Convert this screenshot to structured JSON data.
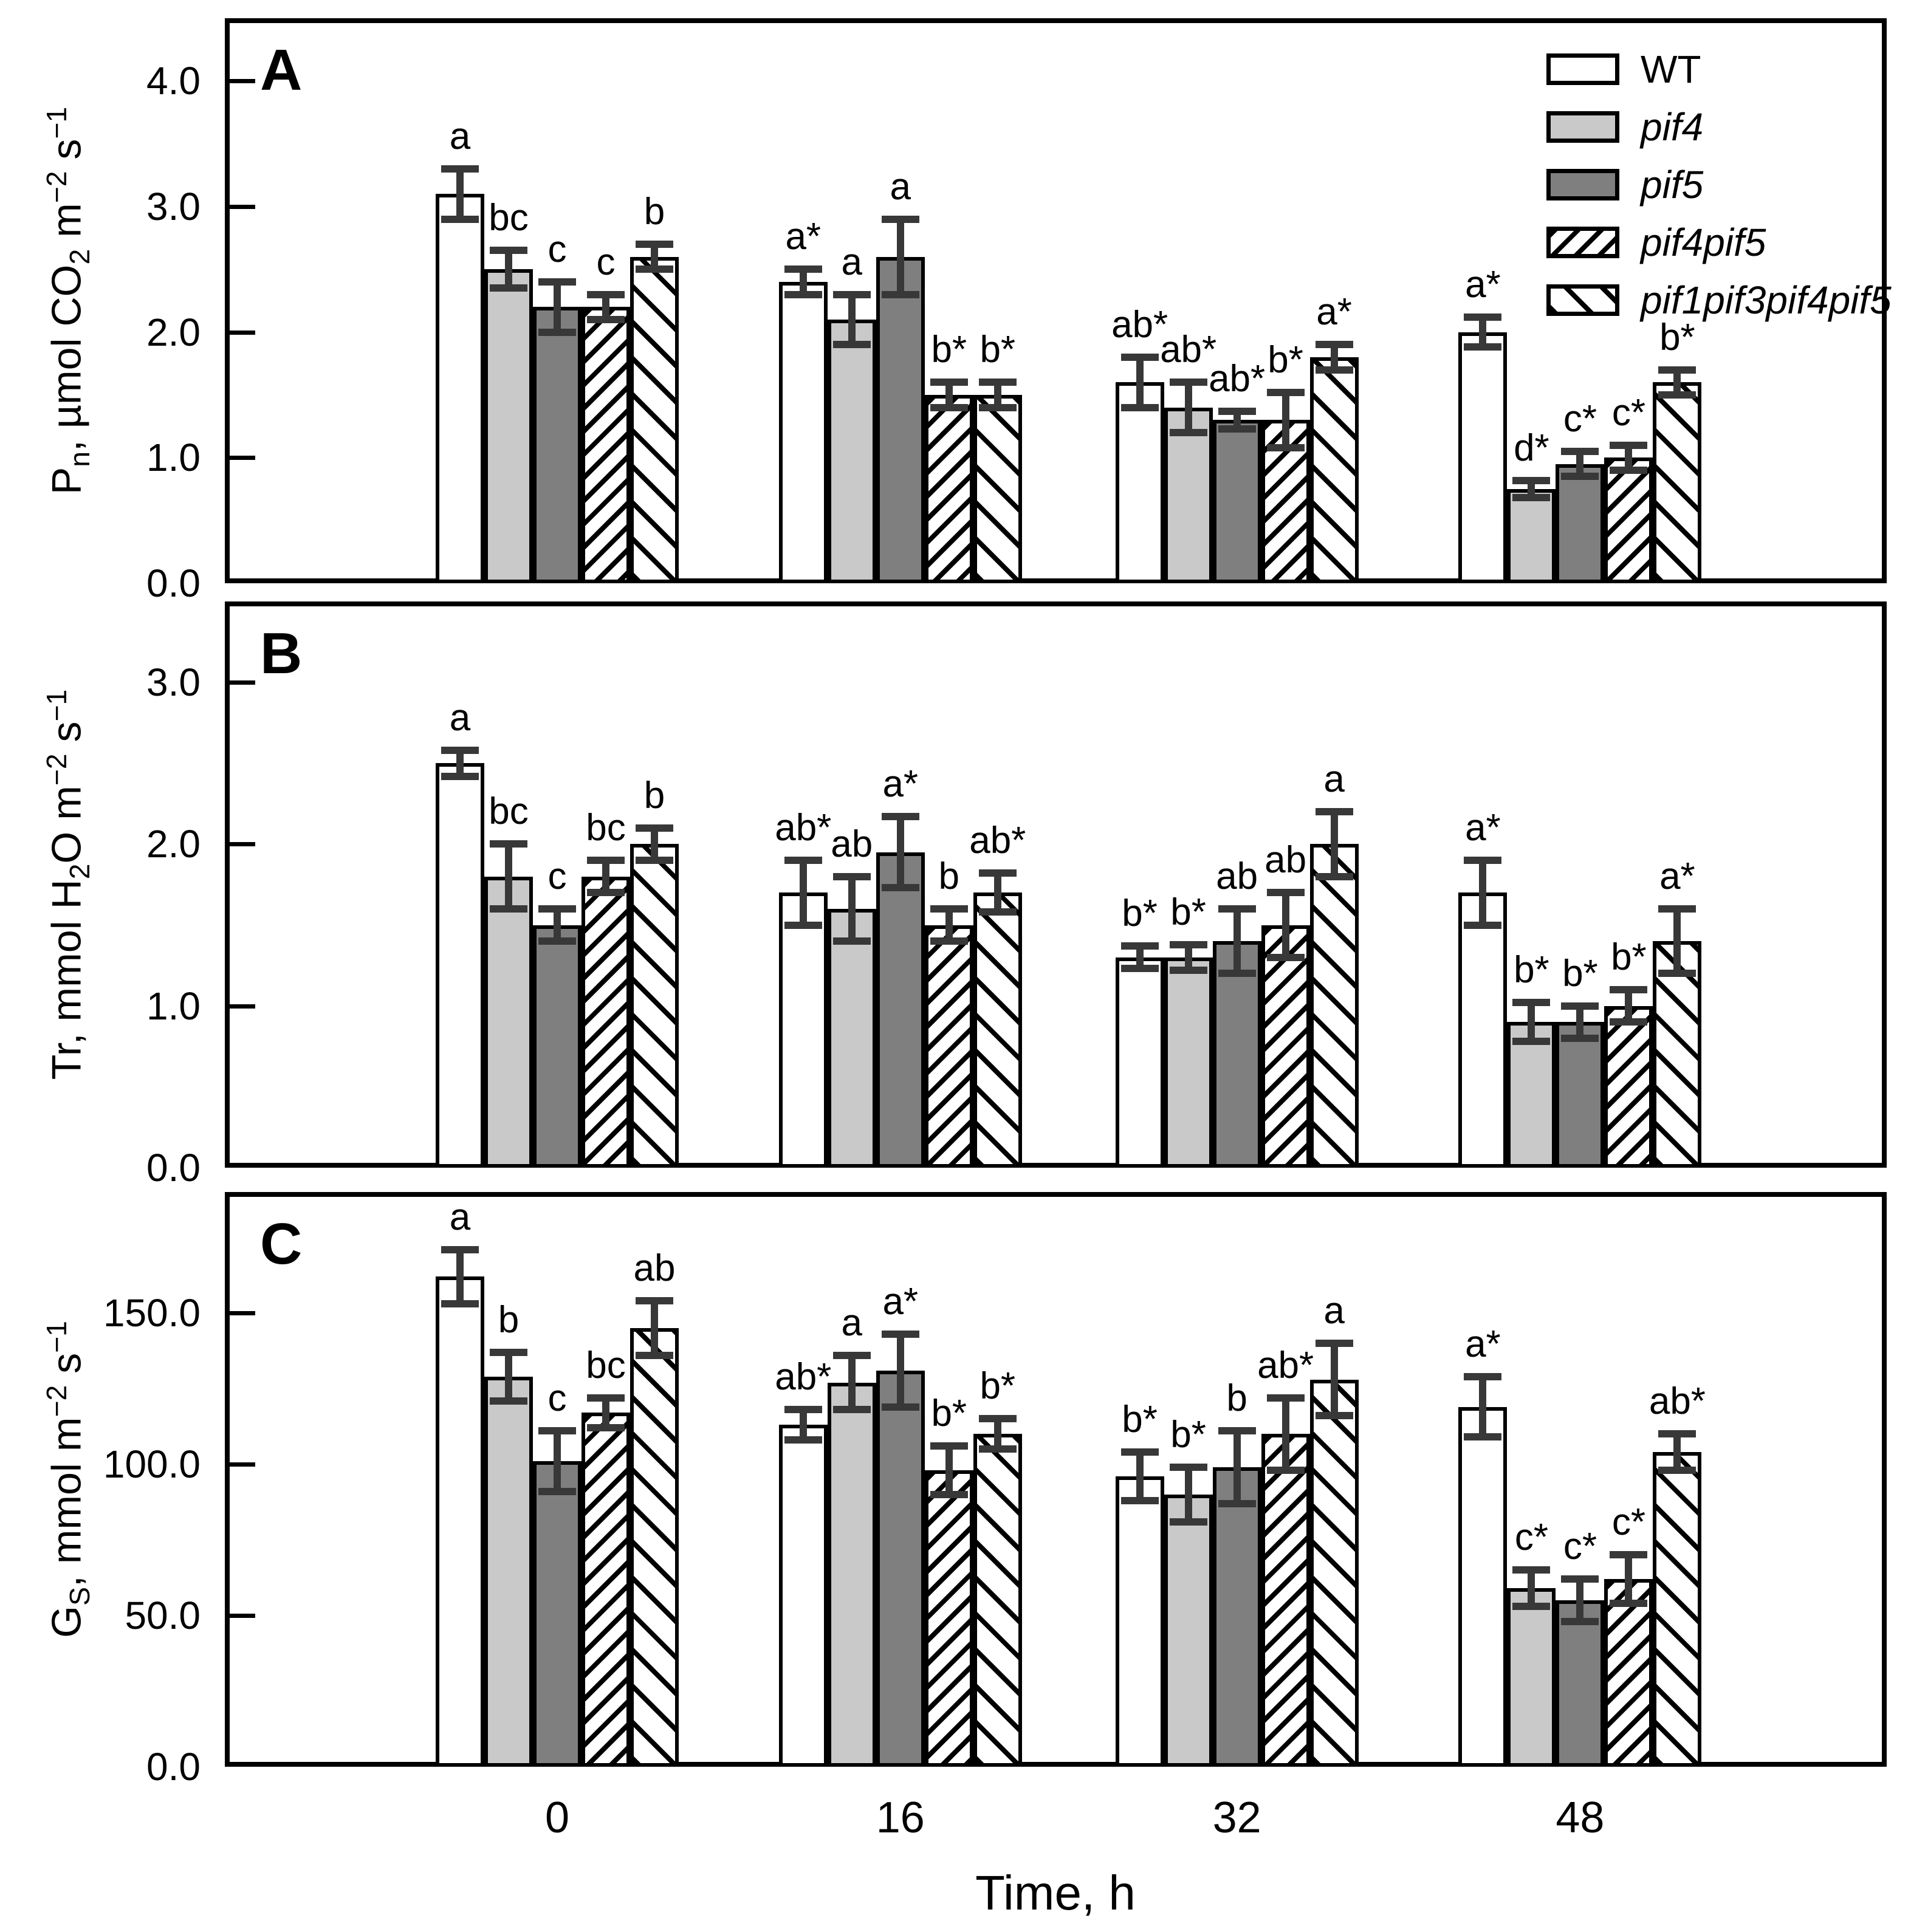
{
  "figure": {
    "xlabel": "Time, h",
    "x_categories": [
      "0",
      "16",
      "32",
      "48"
    ],
    "panel_letters": [
      "A",
      "B",
      "C"
    ],
    "colors": {
      "frame": "#000000",
      "error_bar": "#383838",
      "wt_fill": "#ffffff",
      "pif4_fill": "#c9c9c9",
      "pif5_fill": "#7f7f7f"
    },
    "legend": {
      "position": "upper-right-panel-A",
      "items": [
        {
          "label": "WT",
          "italic": false,
          "pattern": "white"
        },
        {
          "label": "pif4",
          "italic": true,
          "pattern": "lightgray"
        },
        {
          "label": "pif5",
          "italic": true,
          "pattern": "darkgray"
        },
        {
          "label": "pif4pif5",
          "italic": true,
          "pattern": "hatch-forward"
        },
        {
          "label": "pif1pif3pif4pif5",
          "italic": true,
          "pattern": "hatch-backward"
        }
      ]
    }
  },
  "chart_data": [
    {
      "panel": "A",
      "type": "bar",
      "grouped": true,
      "categories": [
        "0",
        "16",
        "32",
        "48"
      ],
      "ylabel_parts": [
        {
          "text": "P"
        },
        {
          "text": "n",
          "style": "sub"
        },
        {
          "text": ", µmol CO"
        },
        {
          "text": "2",
          "style": "sub"
        },
        {
          "text": " m"
        },
        {
          "text": "−2",
          "style": "sup"
        },
        {
          "text": " s"
        },
        {
          "text": "−1",
          "style": "sup"
        }
      ],
      "ylim": [
        0,
        4.5
      ],
      "yticks": [
        {
          "v": 0,
          "label": "0.0"
        },
        {
          "v": 1.0,
          "label": "1.0"
        },
        {
          "v": 2.0,
          "label": "2.0"
        },
        {
          "v": 3.0,
          "label": "3.0"
        },
        {
          "v": 4.0,
          "label": "4.0"
        }
      ],
      "series": [
        {
          "name": "WT",
          "pattern": "white",
          "values": [
            3.1,
            2.4,
            1.6,
            2.0
          ],
          "errors": [
            0.2,
            0.1,
            0.2,
            0.12
          ],
          "sig": [
            "a",
            "a*",
            "ab*",
            "a*"
          ]
        },
        {
          "name": "pif4",
          "pattern": "lightgray",
          "values": [
            2.5,
            2.1,
            1.4,
            0.75
          ],
          "errors": [
            0.15,
            0.2,
            0.2,
            0.07
          ],
          "sig": [
            "bc",
            "a",
            "ab*",
            "d*"
          ]
        },
        {
          "name": "pif5",
          "pattern": "darkgray",
          "values": [
            2.2,
            2.6,
            1.3,
            0.95
          ],
          "errors": [
            0.2,
            0.3,
            0.07,
            0.1
          ],
          "sig": [
            "c",
            "a",
            "ab*",
            "c*"
          ]
        },
        {
          "name": "pif4pif5",
          "pattern": "hatch-forward",
          "values": [
            2.2,
            1.5,
            1.3,
            1.0
          ],
          "errors": [
            0.1,
            0.1,
            0.22,
            0.1
          ],
          "sig": [
            "c",
            "b*",
            "b*",
            "c*"
          ]
        },
        {
          "name": "pif1pif3pif4pif5",
          "pattern": "hatch-backward",
          "values": [
            2.6,
            1.5,
            1.8,
            1.6
          ],
          "errors": [
            0.1,
            0.1,
            0.1,
            0.1
          ],
          "sig": [
            "b",
            "b*",
            "a*",
            "b*"
          ]
        }
      ]
    },
    {
      "panel": "B",
      "type": "bar",
      "grouped": true,
      "categories": [
        "0",
        "16",
        "32",
        "48"
      ],
      "ylabel_parts": [
        {
          "text": "Tr, mmol H"
        },
        {
          "text": "2",
          "style": "sub"
        },
        {
          "text": "O m"
        },
        {
          "text": "−2",
          "style": "sup"
        },
        {
          "text": " s"
        },
        {
          "text": "−1",
          "style": "sup"
        }
      ],
      "ylim": [
        0,
        3.5
      ],
      "yticks": [
        {
          "v": 0,
          "label": "0.0"
        },
        {
          "v": 1.0,
          "label": "1.0"
        },
        {
          "v": 2.0,
          "label": "2.0"
        },
        {
          "v": 3.0,
          "label": "3.0"
        }
      ],
      "series": [
        {
          "name": "WT",
          "pattern": "white",
          "values": [
            2.5,
            1.7,
            1.3,
            1.7
          ],
          "errors": [
            0.08,
            0.2,
            0.07,
            0.2
          ],
          "sig": [
            "a",
            "ab*",
            "b*",
            "a*"
          ]
        },
        {
          "name": "pif4",
          "pattern": "lightgray",
          "values": [
            1.8,
            1.6,
            1.3,
            0.9
          ],
          "errors": [
            0.2,
            0.2,
            0.08,
            0.12
          ],
          "sig": [
            "bc",
            "ab",
            "b*",
            "b*"
          ]
        },
        {
          "name": "pif5",
          "pattern": "darkgray",
          "values": [
            1.5,
            1.95,
            1.4,
            0.9
          ],
          "errors": [
            0.1,
            0.22,
            0.2,
            0.1
          ],
          "sig": [
            "c",
            "a*",
            "ab",
            "b*"
          ]
        },
        {
          "name": "pif4pif5",
          "pattern": "hatch-forward",
          "values": [
            1.8,
            1.5,
            1.5,
            1.0
          ],
          "errors": [
            0.1,
            0.1,
            0.2,
            0.1
          ],
          "sig": [
            "bc",
            "b",
            "ab",
            "b*"
          ]
        },
        {
          "name": "pif1pif3pif4pif5",
          "pattern": "hatch-backward",
          "values": [
            2.0,
            1.7,
            2.0,
            1.4
          ],
          "errors": [
            0.1,
            0.12,
            0.2,
            0.2
          ],
          "sig": [
            "b",
            "ab*",
            "a",
            "a*"
          ]
        }
      ]
    },
    {
      "panel": "C",
      "type": "bar",
      "grouped": true,
      "categories": [
        "0",
        "16",
        "32",
        "48"
      ],
      "ylabel_parts": [
        {
          "text": "G"
        },
        {
          "text": "S",
          "style": "sub"
        },
        {
          "text": ", mmol m"
        },
        {
          "text": "−2",
          "style": "sup"
        },
        {
          "text": " s"
        },
        {
          "text": "−1",
          "style": "sup"
        }
      ],
      "ylim": [
        0,
        190
      ],
      "yticks": [
        {
          "v": 0,
          "label": "0.0"
        },
        {
          "v": 50,
          "label": "50.0"
        },
        {
          "v": 100,
          "label": "100.0"
        },
        {
          "v": 150,
          "label": "150.0"
        }
      ],
      "series": [
        {
          "name": "WT",
          "pattern": "white",
          "values": [
            162,
            113,
            96,
            119
          ],
          "errors": [
            9,
            5,
            8,
            10
          ],
          "sig": [
            "a",
            "ab*",
            "b*",
            "a*"
          ]
        },
        {
          "name": "pif4",
          "pattern": "lightgray",
          "values": [
            129,
            127,
            90,
            59
          ],
          "errors": [
            8,
            9,
            9,
            6
          ],
          "sig": [
            "b",
            "a",
            "b*",
            "c*"
          ]
        },
        {
          "name": "pif5",
          "pattern": "darkgray",
          "values": [
            101,
            131,
            99,
            55
          ],
          "errors": [
            10,
            12,
            12,
            7
          ],
          "sig": [
            "c",
            "a*",
            "b",
            "c*"
          ]
        },
        {
          "name": "pif4pif5",
          "pattern": "hatch-forward",
          "values": [
            117,
            98,
            110,
            62
          ],
          "errors": [
            5,
            8,
            12,
            8
          ],
          "sig": [
            "bc",
            "b*",
            "ab*",
            "c*"
          ]
        },
        {
          "name": "pif1pif3pif4pif5",
          "pattern": "hatch-backward",
          "values": [
            145,
            110,
            128,
            104
          ],
          "errors": [
            9,
            5,
            12,
            6
          ],
          "sig": [
            "ab",
            "b*",
            "a",
            "ab*"
          ]
        }
      ]
    }
  ]
}
